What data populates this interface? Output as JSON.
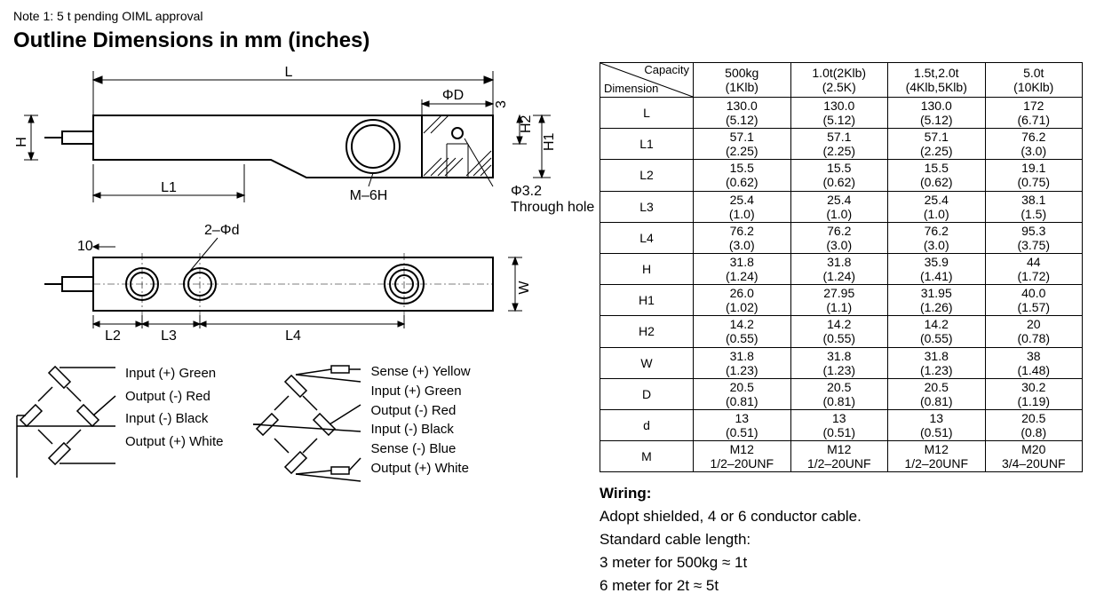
{
  "note": "Note 1: 5 t pending OIML approval",
  "title": "Outline Dimensions in mm (inches)",
  "diagram": {
    "L": "L",
    "L1": "L1",
    "L2": "L2",
    "L3": "L3",
    "L4": "L4",
    "H": "H",
    "H1": "H1",
    "H2": "H2",
    "W": "W",
    "D": "ΦD",
    "d": "2–Φd",
    "M": "M–6H",
    "three": "3",
    "ten": "10",
    "through": "Φ3.2\nThrough hole"
  },
  "table": {
    "corner_top": "Capacity",
    "corner_bot": "Dimension",
    "columns": [
      {
        "a": "500kg",
        "b": "(1Klb)"
      },
      {
        "a": "1.0t(2Klb)",
        "b": "(2.5K)"
      },
      {
        "a": "1.5t,2.0t",
        "b": "(4Klb,5Klb)"
      },
      {
        "a": "5.0t",
        "b": "(10Klb)"
      }
    ],
    "rows": [
      {
        "name": "L",
        "vals": [
          [
            "130.0",
            "(5.12)"
          ],
          [
            "130.0",
            "(5.12)"
          ],
          [
            "130.0",
            "(5.12)"
          ],
          [
            "172",
            "(6.71)"
          ]
        ]
      },
      {
        "name": "L1",
        "vals": [
          [
            "57.1",
            "(2.25)"
          ],
          [
            "57.1",
            "(2.25)"
          ],
          [
            "57.1",
            "(2.25)"
          ],
          [
            "76.2",
            "(3.0)"
          ]
        ]
      },
      {
        "name": "L2",
        "vals": [
          [
            "15.5",
            "(0.62)"
          ],
          [
            "15.5",
            "(0.62)"
          ],
          [
            "15.5",
            "(0.62)"
          ],
          [
            "19.1",
            "(0.75)"
          ]
        ]
      },
      {
        "name": "L3",
        "vals": [
          [
            "25.4",
            "(1.0)"
          ],
          [
            "25.4",
            "(1.0)"
          ],
          [
            "25.4",
            "(1.0)"
          ],
          [
            "38.1",
            "(1.5)"
          ]
        ]
      },
      {
        "name": "L4",
        "vals": [
          [
            "76.2",
            "(3.0)"
          ],
          [
            "76.2",
            "(3.0)"
          ],
          [
            "76.2",
            "(3.0)"
          ],
          [
            "95.3",
            "(3.75)"
          ]
        ]
      },
      {
        "name": "H",
        "vals": [
          [
            "31.8",
            "(1.24)"
          ],
          [
            "31.8",
            "(1.24)"
          ],
          [
            "35.9",
            "(1.41)"
          ],
          [
            "44",
            "(1.72)"
          ]
        ]
      },
      {
        "name": "H1",
        "vals": [
          [
            "26.0",
            "(1.02)"
          ],
          [
            "27.95",
            "(1.1)"
          ],
          [
            "31.95",
            "(1.26)"
          ],
          [
            "40.0",
            "(1.57)"
          ]
        ]
      },
      {
        "name": "H2",
        "vals": [
          [
            "14.2",
            "(0.55)"
          ],
          [
            "14.2",
            "(0.55)"
          ],
          [
            "14.2",
            "(0.55)"
          ],
          [
            "20",
            "(0.78)"
          ]
        ]
      },
      {
        "name": "W",
        "vals": [
          [
            "31.8",
            "(1.23)"
          ],
          [
            "31.8",
            "(1.23)"
          ],
          [
            "31.8",
            "(1.23)"
          ],
          [
            "38",
            "(1.48)"
          ]
        ]
      },
      {
        "name": "D",
        "vals": [
          [
            "20.5",
            "(0.81)"
          ],
          [
            "20.5",
            "(0.81)"
          ],
          [
            "20.5",
            "(0.81)"
          ],
          [
            "30.2",
            "(1.19)"
          ]
        ]
      },
      {
        "name": "d",
        "vals": [
          [
            "13",
            "(0.51)"
          ],
          [
            "13",
            "(0.51)"
          ],
          [
            "13",
            "(0.51)"
          ],
          [
            "20.5",
            "(0.8)"
          ]
        ]
      },
      {
        "name": "M",
        "vals": [
          [
            "M12",
            "1/2–20UNF"
          ],
          [
            "M12",
            "1/2–20UNF"
          ],
          [
            "M12",
            "1/2–20UNF"
          ],
          [
            "M20",
            "3/4–20UNF"
          ]
        ]
      }
    ]
  },
  "wiring4": [
    "Input (+) Green",
    "Output (-) Red",
    "Input (-) Black",
    "Output (+) White"
  ],
  "wiring6": [
    "Sense (+) Yellow",
    "Input (+) Green",
    "Output (-) Red",
    "Input (-) Black",
    "Sense (-) Blue",
    "Output (+) White"
  ],
  "wiring_text": {
    "heading": "Wiring:",
    "line1": "Adopt shielded, 4 or 6 conductor cable.",
    "line2": "Standard cable length:",
    "line3": "3 meter for 500kg ≈ 1t",
    "line4": "6 meter for 2t ≈ 5t"
  }
}
